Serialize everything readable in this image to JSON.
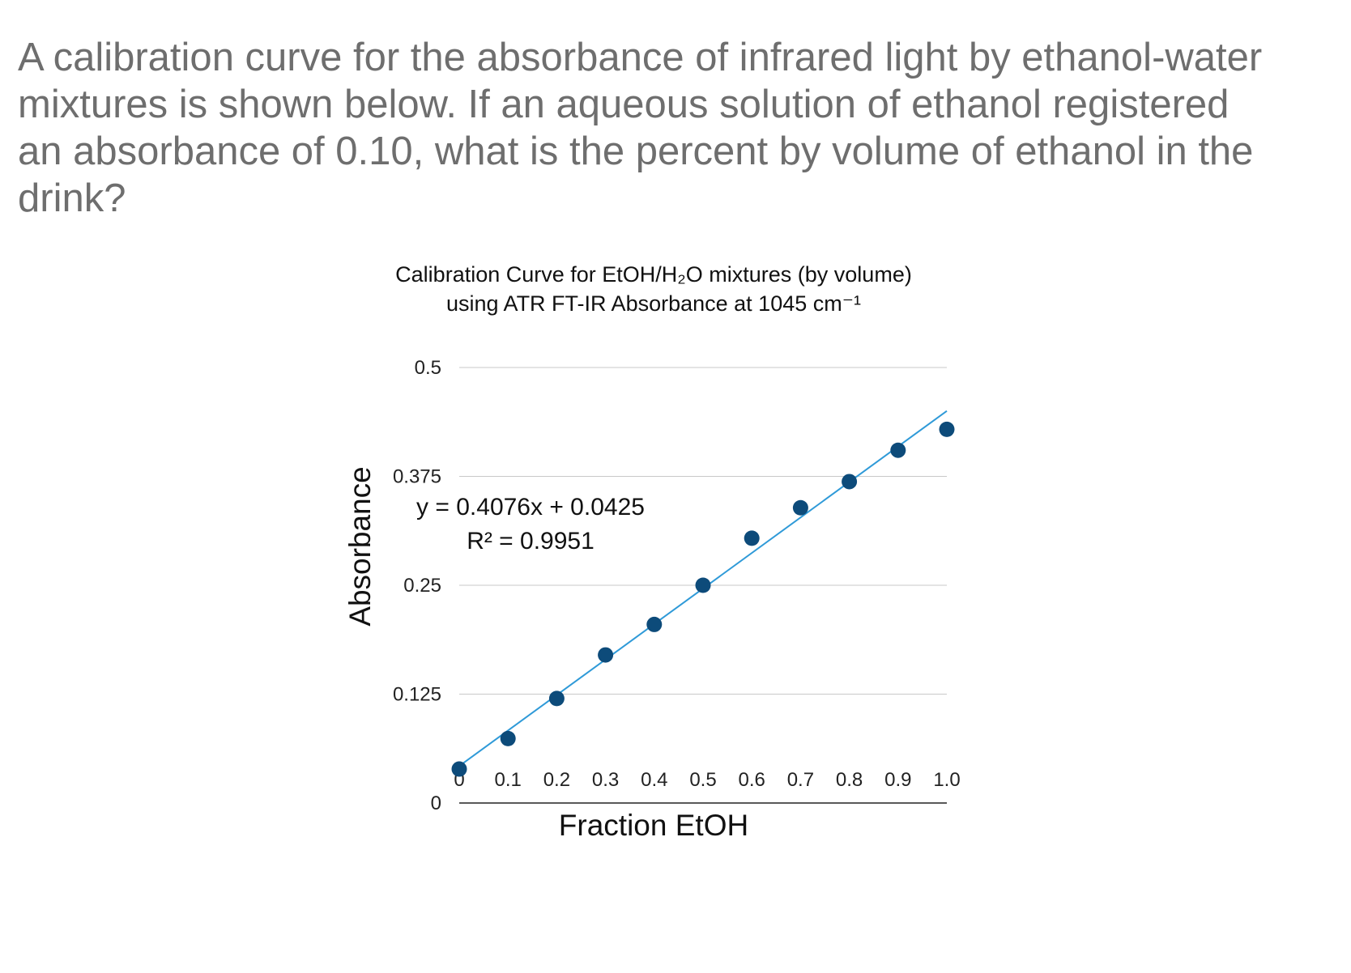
{
  "question": "A calibration curve for the absorbance of infrared light by ethanol-water mixtures is shown below. If an aqueous solution of ethanol registered an absorbance of 0.10, what is the percent by volume of ethanol in the drink?",
  "colors": {
    "question_text": "#6e6e6e",
    "marker": "#0d4b7a",
    "trendline": "#2f9ad8",
    "gridline": "#c8c8c8"
  },
  "chart_data": {
    "type": "scatter",
    "title_line1": "Calibration Curve for EtOH/H₂O mixtures (by volume)",
    "title_line2": "using ATR FT-IR Absorbance at 1045 cm⁻¹",
    "xlabel": "Fraction EtOH",
    "ylabel": "Absorbance",
    "x_tick_labels": [
      "0",
      "0.1",
      "0.2",
      "0.3",
      "0.4",
      "0.5",
      "0.6",
      "0.7",
      "0.8",
      "0.9",
      "1.0"
    ],
    "y_tick_labels": [
      "0",
      "0.125",
      "0.25",
      "0.375",
      "0.5"
    ],
    "xlim": [
      0,
      1.0
    ],
    "ylim": [
      0,
      0.5
    ],
    "grid": "horizontal",
    "x": [
      0,
      0.1,
      0.2,
      0.3,
      0.4,
      0.5,
      0.6,
      0.7,
      0.8,
      0.9,
      1.0
    ],
    "y": [
      0.039,
      0.074,
      0.12,
      0.17,
      0.205,
      0.25,
      0.304,
      0.339,
      0.369,
      0.405,
      0.429
    ],
    "trendline": {
      "slope": 0.4076,
      "intercept": 0.0425,
      "x_range": [
        0,
        1.0
      ]
    },
    "equation_text": "y = 0.4076x + 0.0425",
    "r2_text": "R² = 0.9951"
  }
}
